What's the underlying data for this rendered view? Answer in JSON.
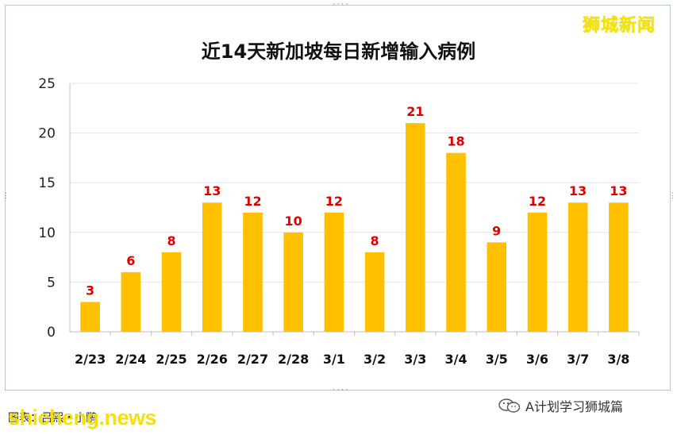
{
  "header": {
    "brand_text": "狮城新闻"
  },
  "footer": {
    "credit_text": "图表：吕熙・小鹏",
    "watermark_text": "shicheng.news",
    "account_text": "A计划学习狮城篇",
    "account_icon": "wechat-icon"
  },
  "colors": {
    "bar": "#FFC000",
    "value_label": "#E00000",
    "brand": "#F5DE00"
  },
  "chart_data": {
    "type": "bar",
    "title": "近14天新加坡每日新增输入病例",
    "xlabel": "",
    "ylabel": "",
    "categories": [
      "2/23",
      "2/24",
      "2/25",
      "2/26",
      "2/27",
      "2/28",
      "3/1",
      "3/2",
      "3/3",
      "3/4",
      "3/5",
      "3/6",
      "3/7",
      "3/8"
    ],
    "values": [
      3,
      6,
      8,
      13,
      12,
      10,
      12,
      8,
      21,
      18,
      9,
      12,
      13,
      13
    ],
    "ylim": [
      0,
      25
    ],
    "yticks": [
      0,
      5,
      10,
      15,
      20,
      25
    ],
    "grid": true,
    "data_labels": true
  }
}
